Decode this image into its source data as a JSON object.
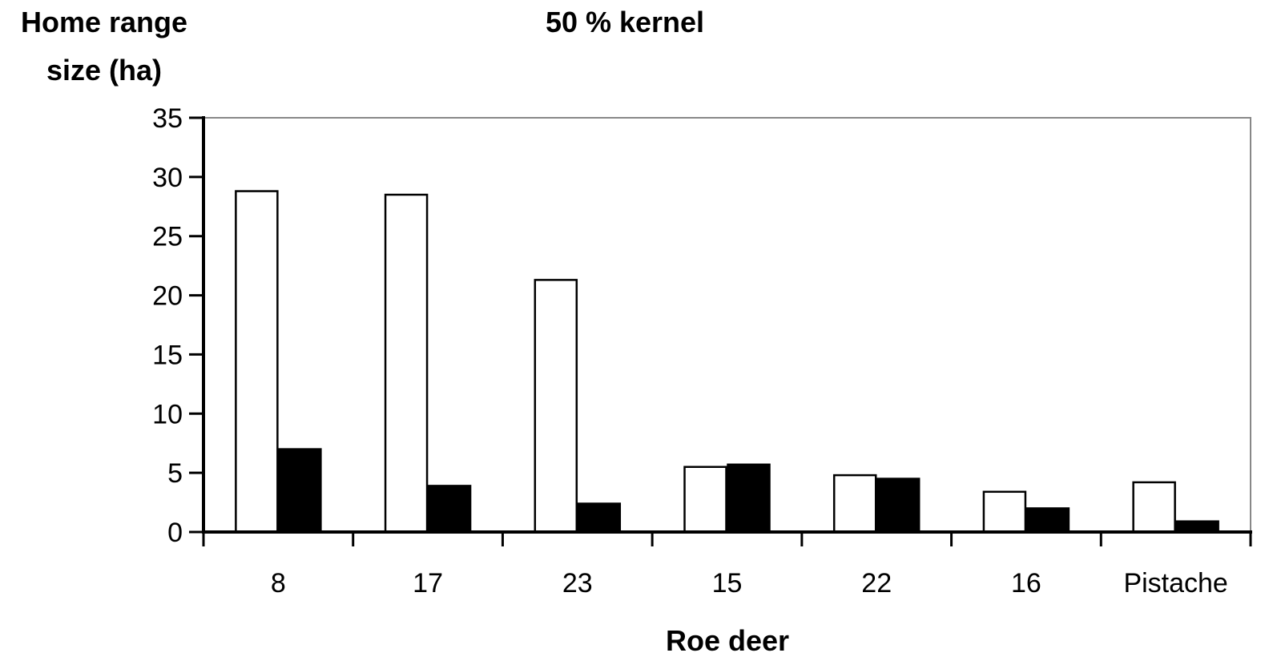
{
  "chart_data": {
    "type": "bar",
    "title": "50 % kernel",
    "ylabel_lines": [
      "Home range",
      "size (ha)"
    ],
    "xlabel": "Roe deer",
    "categories": [
      "8",
      "17",
      "23",
      "15",
      "22",
      "16",
      "Pistache"
    ],
    "ylim": [
      0,
      35
    ],
    "yticks": [
      0,
      5,
      10,
      15,
      20,
      25,
      30,
      35
    ],
    "grid": false,
    "series": [
      {
        "fill": "#ffffff",
        "values": [
          28.8,
          28.5,
          21.3,
          5.5,
          4.8,
          3.4,
          4.2
        ]
      },
      {
        "fill": "#000000",
        "values": [
          7.0,
          3.9,
          2.4,
          5.7,
          4.5,
          2.0,
          0.9
        ]
      }
    ]
  }
}
